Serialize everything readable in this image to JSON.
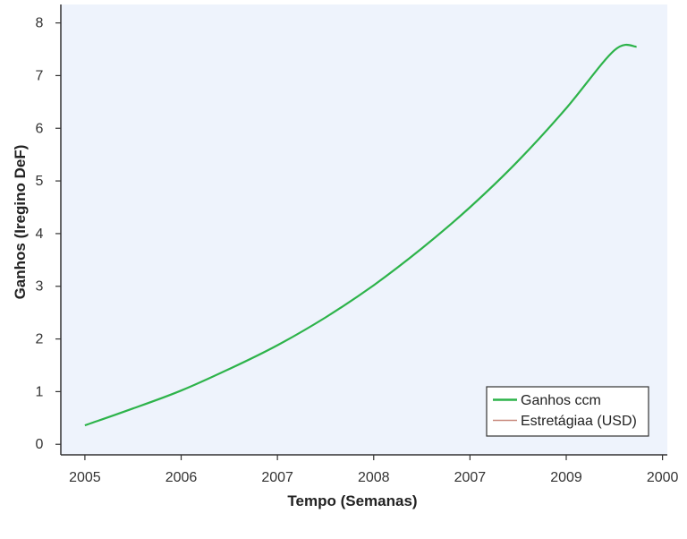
{
  "chart_data": {
    "type": "line",
    "title": "",
    "xlabel": "Tempo (Semanas)",
    "ylabel": "Ganhos (Iregino DeF)",
    "x_tick_labels": [
      "2005",
      "2006",
      "2007",
      "2008",
      "2007",
      "2009",
      "2000"
    ],
    "y_ticks": [
      0,
      1,
      2,
      3,
      4,
      5,
      6,
      7,
      8
    ],
    "ylim": [
      -0.2,
      8.35
    ],
    "xlim": [
      -0.25,
      6.05
    ],
    "grid": false,
    "legend_position": "lower-right",
    "legend": [
      {
        "label": "Ganhos ccm",
        "color": "#2db34a"
      },
      {
        "label": "Estretágiaa (USD)",
        "color": "#c8897d"
      }
    ],
    "series": [
      {
        "color": "#2db34a",
        "x": [
          0.0,
          0.5,
          1.0,
          1.5,
          2.0,
          2.5,
          3.0,
          3.5,
          4.0,
          4.5,
          5.0,
          5.5,
          5.73
        ],
        "y": [
          0.36,
          0.68,
          1.02,
          1.43,
          1.88,
          2.41,
          3.02,
          3.72,
          4.5,
          5.38,
          6.38,
          7.48,
          7.55
        ]
      }
    ]
  },
  "colors": {
    "plot_background": "#eef3fc",
    "axis": "#333333"
  }
}
